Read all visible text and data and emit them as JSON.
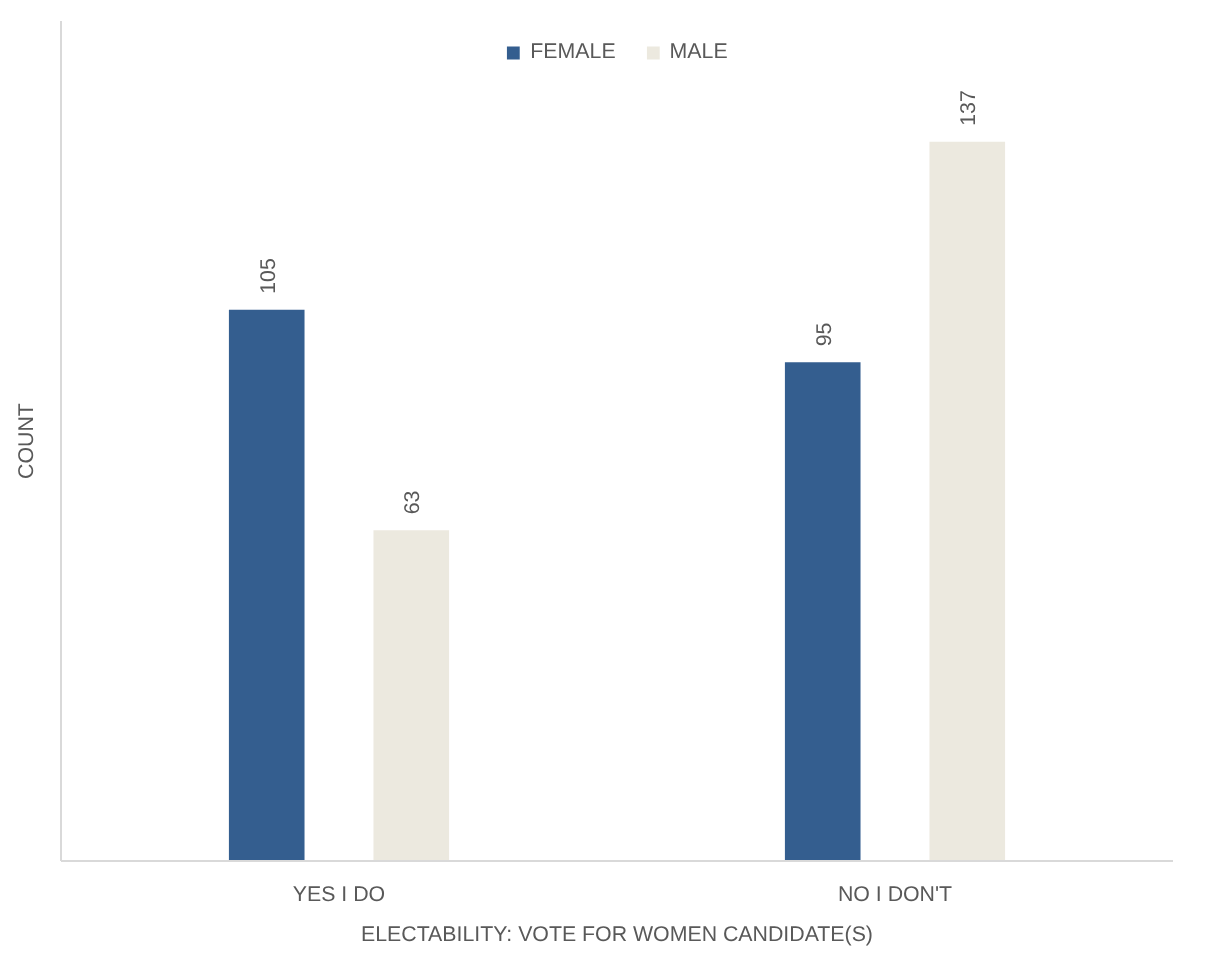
{
  "chart_data": {
    "type": "bar",
    "xlabel": "ELECTABILITY: VOTE FOR WOMEN CANDIDATE(S)",
    "ylabel": "COUNT",
    "categories": [
      "YES I DO",
      "NO I DON'T"
    ],
    "series": [
      {
        "name": "FEMALE",
        "color": "#345e8f",
        "values": [
          105,
          95
        ]
      },
      {
        "name": "MALE",
        "color": "#ece9df",
        "values": [
          63,
          137
        ]
      }
    ],
    "ylim": [
      0,
      160
    ],
    "data_labels": true,
    "legend": "top",
    "tick_labels": "x"
  }
}
